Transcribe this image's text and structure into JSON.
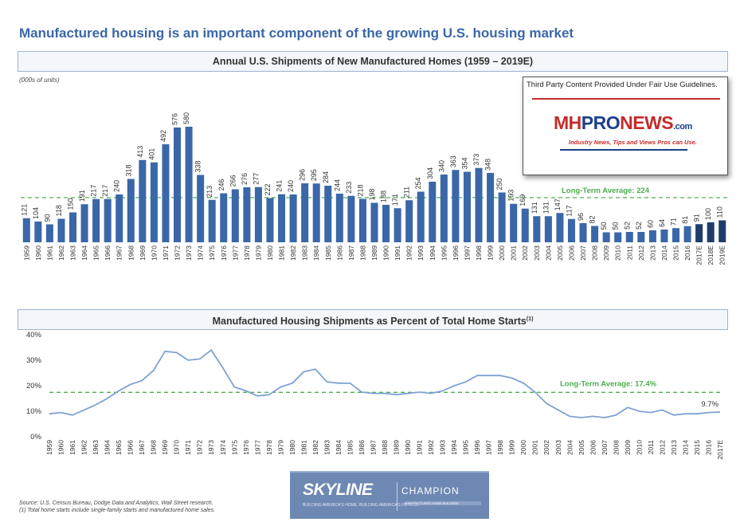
{
  "page_title": "Manufactured housing is an important component of the growing U.S. housing market",
  "chart1_title": "Annual U.S. Shipments of New Manufactured Homes (1959 – 2019E)",
  "units_note": "(000s of units)",
  "chart2_title": "Manufactured Housing Shipments as Percent of Total Home Starts",
  "chart2_title_sup": "(1)",
  "watermark": {
    "caption": "Third Party Content Provided Under Fair Use Guidelines.",
    "logo_mh": "MH",
    "logo_pro": "PRO",
    "logo_news": "NEWS",
    "logo_com": ".com",
    "tagline": "Industry News, Tips and Views Pros can Use."
  },
  "source_note_1": "Source: U.S. Census Bureau, Dodge Data and Analytics, Wall Street research.",
  "source_note_2": "(1) Total home starts include single-family starts and manufactured home sales.",
  "brand": {
    "skyline": "SKYLINE",
    "skyline_sub": "BUILDING AMERICA'S HOME. BUILDING AMERICA'S FUTURE.",
    "champion": "CHAMPION",
    "champion_sub": "MANUFACTURED HOME BUILDERS"
  },
  "colors": {
    "bar": "#3a67a8",
    "bar_estimate": "#1f3d6b",
    "line": "#7ea2d4",
    "average": "#4caf50",
    "title": "#3a67a8"
  },
  "chart_data": [
    {
      "type": "bar",
      "title": "Annual U.S. Shipments of New Manufactured Homes (1959 – 2019E)",
      "ylabel": "(000s of units)",
      "categories": [
        "1959",
        "1960",
        "1961",
        "1962",
        "1963",
        "1964",
        "1965",
        "1966",
        "1967",
        "1968",
        "1969",
        "1970",
        "1971",
        "1972",
        "1973",
        "1974",
        "1975",
        "1976",
        "1977",
        "1978",
        "1979",
        "1980",
        "1981",
        "1982",
        "1983",
        "1984",
        "1985",
        "1986",
        "1987",
        "1988",
        "1989",
        "1990",
        "1991",
        "1992",
        "1993",
        "1994",
        "1995",
        "1996",
        "1997",
        "1998",
        "1999",
        "2000",
        "2001",
        "2002",
        "2003",
        "2004",
        "2005",
        "2006",
        "2007",
        "2008",
        "2009",
        "2010",
        "2011",
        "2012",
        "2013",
        "2014",
        "2015",
        "2016",
        "2017E",
        "2018E",
        "2019E"
      ],
      "values": [
        121,
        104,
        90,
        118,
        150,
        191,
        217,
        217,
        240,
        318,
        413,
        401,
        492,
        576,
        580,
        338,
        213,
        246,
        266,
        276,
        277,
        222,
        241,
        240,
        296,
        295,
        284,
        244,
        233,
        218,
        198,
        188,
        171,
        211,
        254,
        304,
        340,
        363,
        354,
        373,
        348,
        250,
        193,
        169,
        131,
        131,
        147,
        117,
        96,
        82,
        50,
        50,
        52,
        52,
        60,
        64,
        71,
        81,
        91,
        100,
        110
      ],
      "estimate_categories": [
        "2017E",
        "2018E",
        "2019E"
      ],
      "reference_line": {
        "label": "Long-Term Average: 224",
        "value": 224
      },
      "ylim": [
        0,
        600
      ]
    },
    {
      "type": "line",
      "title": "Manufactured Housing Shipments as Percent of Total Home Starts",
      "x": [
        "1959",
        "1960",
        "1961",
        "1962",
        "1963",
        "1964",
        "1965",
        "1966",
        "1967",
        "1968",
        "1969",
        "1970",
        "1971",
        "1972",
        "1973",
        "1974",
        "1975",
        "1976",
        "1977",
        "1978",
        "1979",
        "1980",
        "1981",
        "1982",
        "1983",
        "1984",
        "1985",
        "1986",
        "1987",
        "1988",
        "1989",
        "1990",
        "1991",
        "1992",
        "1993",
        "1994",
        "1995",
        "1996",
        "1997",
        "1998",
        "1999",
        "2000",
        "2001",
        "2002",
        "2003",
        "2004",
        "2005",
        "2006",
        "2007",
        "2008",
        "2009",
        "2010",
        "2011",
        "2012",
        "2013",
        "2014",
        "2015",
        "2016",
        "2017E"
      ],
      "y": [
        9.0,
        9.5,
        8.5,
        10.5,
        12.5,
        15.0,
        18.0,
        20.5,
        22.0,
        26.0,
        33.5,
        33.0,
        30.0,
        30.5,
        34.0,
        27.0,
        19.5,
        18.0,
        16.0,
        16.5,
        19.5,
        21.0,
        25.5,
        26.5,
        21.5,
        21.0,
        21.0,
        17.5,
        17.0,
        17.0,
        16.5,
        17.0,
        17.5,
        17.0,
        18.0,
        20.0,
        21.5,
        24.0,
        24.0,
        24.0,
        23.0,
        21.0,
        17.5,
        13.0,
        10.5,
        8.0,
        7.5,
        8.0,
        7.5,
        8.5,
        11.5,
        10.0,
        9.5,
        10.5,
        8.5,
        9.0,
        9.0,
        9.5,
        9.7
      ],
      "ytick_labels": [
        "0%",
        "10%",
        "20%",
        "30%",
        "40%"
      ],
      "ylim": [
        0,
        40
      ],
      "reference_line": {
        "label": "Long-Term Average: 17.4%",
        "value": 17.4
      },
      "end_label": "9.7%"
    }
  ]
}
